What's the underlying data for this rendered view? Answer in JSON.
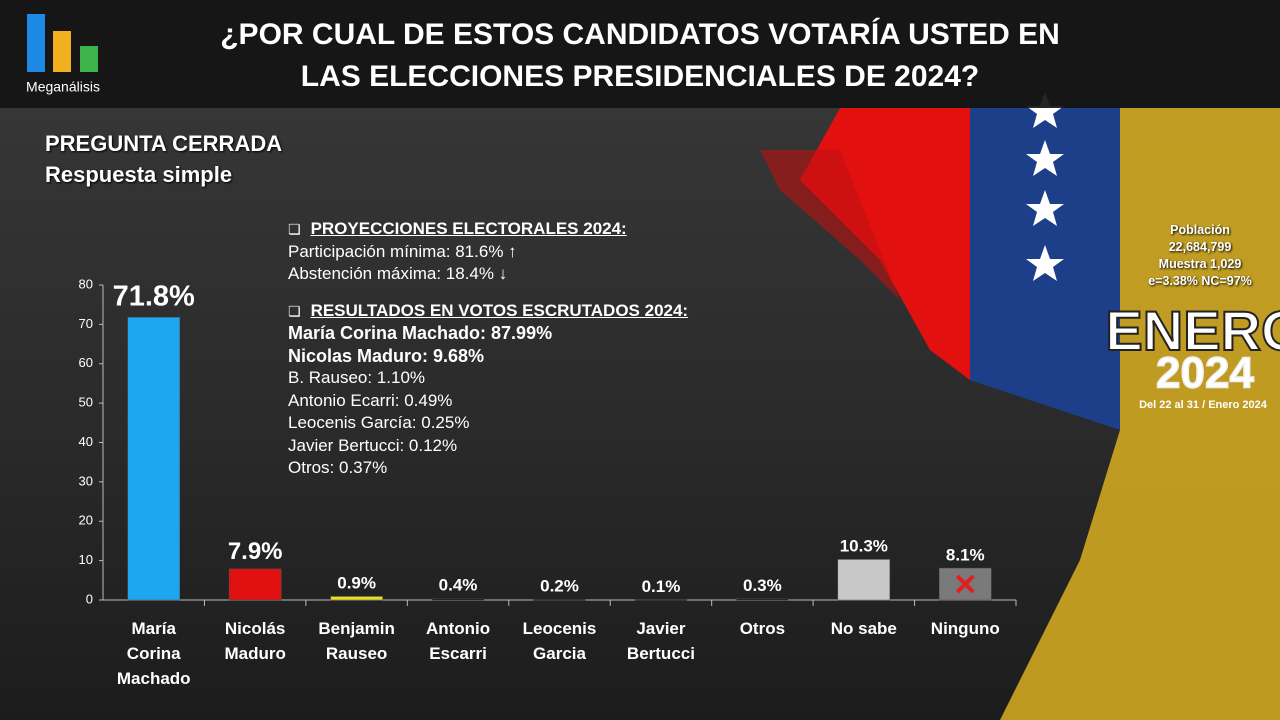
{
  "header": {
    "logo": "Meganálisis",
    "title": [
      "¿POR CUAL DE ESTOS CANDIDATOS VOTARÍA USTED EN",
      "LAS ELECCIONES PRESIDENCIALES DE 2024?"
    ]
  },
  "question_type": [
    "PREGUNTA  CERRADA",
    "Respuesta simple"
  ],
  "projections": {
    "heading": "PROYECCIONES  ELECTORALES  2024:",
    "lines": [
      "Participación  mínima: 81.6% ↑",
      "Abstención  máxima: 18.4% ↓"
    ]
  },
  "results": {
    "heading": "RESULTADOS  EN  VOTOS  ESCRUTADOS  2024:",
    "lines": [
      {
        "text": "María Corina Machado: 87.99%",
        "bold": true
      },
      {
        "text": "Nicolas Maduro: 9.68%",
        "bold": true
      },
      {
        "text": "B. Rauseo: 1.10%",
        "bold": false
      },
      {
        "text": "Antonio Ecarri: 0.49%",
        "bold": false
      },
      {
        "text": "Leocenis García: 0.25%",
        "bold": false
      },
      {
        "text": "Javier Bertucci: 0.12%",
        "bold": false
      },
      {
        "text": "Otros: 0.37%",
        "bold": false
      }
    ]
  },
  "sample": [
    "Población",
    "22,684,799",
    "Muestra 1,029",
    "e=3.38%  NC=97%"
  ],
  "period": {
    "month": "ENERO",
    "year": "2024",
    "dates": "Del 22 al 31 / Enero 2024"
  },
  "chart_data": {
    "type": "bar",
    "categories": [
      "María Corina Machado",
      "Nicolás Maduro",
      "Benjamin Rauseo",
      "Antonio Escarri",
      "Leocenis Garcia",
      "Javier Bertucci",
      "Otros",
      "No sabe",
      "Ninguno"
    ],
    "values": [
      71.8,
      7.9,
      0.9,
      0.4,
      0.2,
      0.1,
      0.3,
      10.3,
      8.1
    ],
    "value_labels": [
      "71.8%",
      "7.9%",
      "0.9%",
      "0.4%",
      "0.2%",
      "0.1%",
      "0.3%",
      "10.3%",
      "8.1%"
    ],
    "colors": [
      "#1ea7f0",
      "#e01010",
      "#e8e020",
      "#111111",
      "#111111",
      "#111111",
      "#111111",
      "#c8c8c8",
      "#7a7a7a"
    ],
    "ylim": [
      0,
      80
    ],
    "yticks": [
      0,
      10,
      20,
      30,
      40,
      50,
      60,
      70,
      80
    ]
  }
}
